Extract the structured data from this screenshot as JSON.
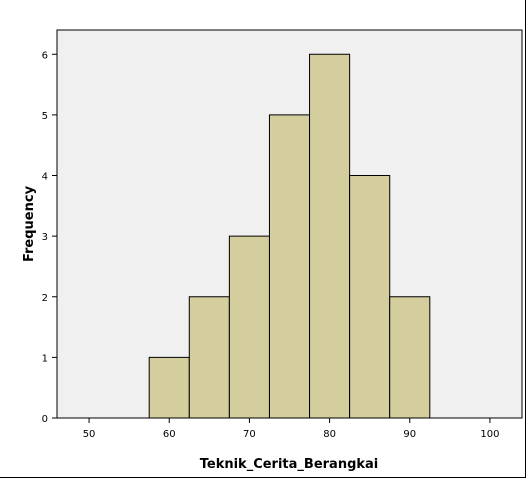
{
  "chart_data": {
    "type": "bar",
    "subtype": "histogram",
    "xlabel": "Teknik_Cerita_Berangkai",
    "ylabel": "Frequency",
    "xlim": [
      46,
      104
    ],
    "ylim": [
      0,
      6.4
    ],
    "x_ticks": [
      50,
      60,
      70,
      80,
      90,
      100
    ],
    "y_ticks": [
      0,
      1,
      2,
      3,
      4,
      5,
      6
    ],
    "bins": [
      {
        "start": 57.5,
        "end": 62.5,
        "value": 1
      },
      {
        "start": 62.5,
        "end": 67.5,
        "value": 2
      },
      {
        "start": 67.5,
        "end": 72.5,
        "value": 3
      },
      {
        "start": 72.5,
        "end": 77.5,
        "value": 5
      },
      {
        "start": 77.5,
        "end": 82.5,
        "value": 6
      },
      {
        "start": 82.5,
        "end": 87.5,
        "value": 4
      },
      {
        "start": 87.5,
        "end": 92.5,
        "value": 2
      }
    ],
    "grid": false,
    "legend": "none",
    "colors": {
      "bar_fill": "#d4ce9e",
      "bar_stroke": "#000000",
      "plot_background": "#f0f0f0"
    }
  }
}
